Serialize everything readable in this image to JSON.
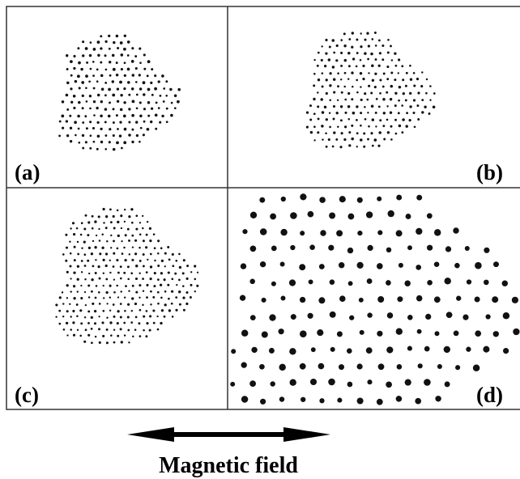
{
  "panels": [
    {
      "label": "(a)"
    },
    {
      "label": "(b)"
    },
    {
      "label": "(c)"
    },
    {
      "label": "(d)"
    }
  ],
  "caption": "Magnetic field"
}
